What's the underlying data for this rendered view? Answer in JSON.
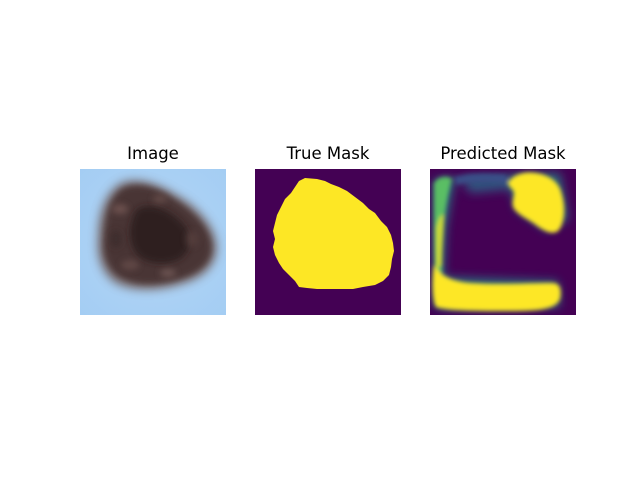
{
  "panels": [
    {
      "title": "Image"
    },
    {
      "title": "True Mask"
    },
    {
      "title": "Predicted Mask"
    }
  ],
  "colors": {
    "background": "#ffffff",
    "mask_background": "#440154",
    "mask_foreground": "#fde725",
    "mask_mid": "#21918c",
    "skin": "#a9d0f5"
  }
}
